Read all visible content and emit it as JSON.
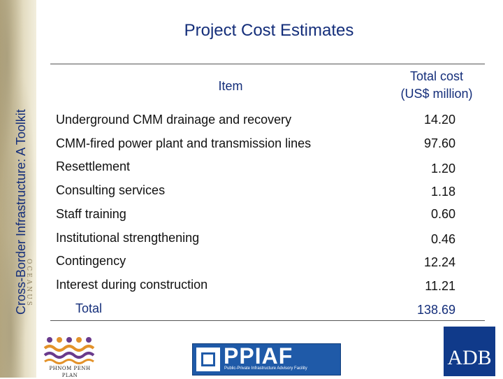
{
  "sidebar": {
    "vertical_title": "Cross-Border Infrastructure: A Toolkit",
    "map_label": "OCEANUS"
  },
  "title": "Project Cost Estimates",
  "table": {
    "header_item": "Item",
    "header_total_line1": "Total cost",
    "header_total_line2": "(US$ million)",
    "rows": [
      {
        "label": "Underground CMM drainage and recovery",
        "value": "14.20"
      },
      {
        "label": "CMM-fired power plant and transmission lines",
        "value": "97.60"
      },
      {
        "label": "Resettlement",
        "value": "1.20"
      },
      {
        "label": "Consulting services",
        "value": "1.18"
      },
      {
        "label": "Staff training",
        "value": "0.60"
      },
      {
        "label": "Institutional strengthening",
        "value": "0.46"
      },
      {
        "label": "Contingency",
        "value": "12.24"
      },
      {
        "label": "Interest during construction",
        "value": "11.21"
      }
    ],
    "total": {
      "label": "Total",
      "value": "138.69"
    }
  },
  "footer": {
    "ppm_caption": "PHNOM PENH PLAN",
    "ppiaf_wordmark": "PPIAF",
    "ppiaf_subtitle": "Public-Private Infrastructure Advisory Facility",
    "adb_wordmark": "ADB"
  },
  "colors": {
    "title_blue": "#142e7a",
    "ppiaf_blue": "#1f5aa8",
    "adb_blue": "#103a8a",
    "ppm_purple": "#6a3a8c",
    "ppm_orange": "#e3922a"
  }
}
